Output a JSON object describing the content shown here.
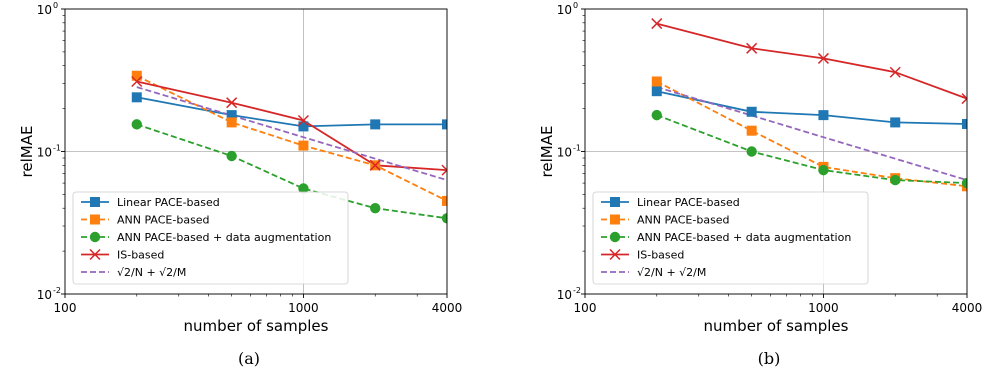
{
  "chart_data": [
    {
      "type": "line",
      "panel_label": "(a)",
      "xlabel": "number of samples",
      "ylabel": "relMAE",
      "x_scale": "log",
      "y_scale": "log",
      "xlim": [
        100,
        4000
      ],
      "ylim": [
        0.01,
        1
      ],
      "x_ticks": [
        100,
        1000,
        4000
      ],
      "x_tick_labels": [
        "100",
        "1000",
        "4000"
      ],
      "y_ticks": [
        0.01,
        0.1,
        1
      ],
      "y_tick_labels": [
        "10",
        "10",
        "10"
      ],
      "y_tick_exponents": [
        "-2",
        "-1",
        "0"
      ],
      "grid": true,
      "legend_position": "lower-left",
      "series": [
        {
          "name": "Linear PACE-based",
          "color": "#1f77b4",
          "linestyle": "solid",
          "marker": "square",
          "x": [
            200,
            500,
            1000,
            2000,
            4000
          ],
          "y": [
            0.24,
            0.18,
            0.15,
            0.155,
            0.155
          ]
        },
        {
          "name": "ANN PACE-based",
          "color": "#ff7f0e",
          "linestyle": "dashed",
          "marker": "square",
          "x": [
            200,
            500,
            1000,
            2000,
            4000
          ],
          "y": [
            0.34,
            0.16,
            0.11,
            0.08,
            0.045
          ]
        },
        {
          "name": "ANN PACE-based + data augmentation",
          "color": "#2ca02c",
          "linestyle": "dashed",
          "marker": "circle",
          "x": [
            200,
            500,
            1000,
            2000,
            4000
          ],
          "y": [
            0.155,
            0.093,
            0.055,
            0.04,
            0.034
          ]
        },
        {
          "name": "IS-based",
          "color": "#d62728",
          "linestyle": "solid",
          "marker": "x",
          "x": [
            200,
            500,
            1000,
            2000,
            4000
          ],
          "y": [
            0.31,
            0.22,
            0.165,
            0.08,
            0.074
          ]
        },
        {
          "name": "√2/N + √2/M",
          "color": "#9467bd",
          "linestyle": "dashed",
          "marker": "none",
          "x": [
            200,
            500,
            1000,
            2000,
            4000
          ],
          "y": [
            0.283,
            0.179,
            0.126,
            0.089,
            0.063
          ]
        }
      ]
    },
    {
      "type": "line",
      "panel_label": "(b)",
      "xlabel": "number of samples",
      "ylabel": "relMAE",
      "x_scale": "log",
      "y_scale": "log",
      "xlim": [
        100,
        4000
      ],
      "ylim": [
        0.01,
        1
      ],
      "x_ticks": [
        100,
        1000,
        4000
      ],
      "x_tick_labels": [
        "100",
        "1000",
        "4000"
      ],
      "y_ticks": [
        0.01,
        0.1,
        1
      ],
      "y_tick_labels": [
        "10",
        "10",
        "10"
      ],
      "y_tick_exponents": [
        "-2",
        "-1",
        "0"
      ],
      "grid": true,
      "legend_position": "lower-left",
      "series": [
        {
          "name": "Linear PACE-based",
          "color": "#1f77b4",
          "linestyle": "solid",
          "marker": "square",
          "x": [
            200,
            500,
            1000,
            2000,
            4000
          ],
          "y": [
            0.265,
            0.19,
            0.18,
            0.16,
            0.156
          ]
        },
        {
          "name": "ANN PACE-based",
          "color": "#ff7f0e",
          "linestyle": "dashed",
          "marker": "square",
          "x": [
            200,
            500,
            1000,
            2000,
            4000
          ],
          "y": [
            0.31,
            0.14,
            0.078,
            0.065,
            0.057
          ]
        },
        {
          "name": "ANN PACE-based + data augmentation",
          "color": "#2ca02c",
          "linestyle": "dashed",
          "marker": "circle",
          "x": [
            200,
            500,
            1000,
            2000,
            4000
          ],
          "y": [
            0.18,
            0.1,
            0.074,
            0.063,
            0.06
          ]
        },
        {
          "name": "IS-based",
          "color": "#d62728",
          "linestyle": "solid",
          "marker": "x",
          "x": [
            200,
            500,
            1000,
            2000,
            4000
          ],
          "y": [
            0.79,
            0.53,
            0.45,
            0.36,
            0.235
          ]
        },
        {
          "name": "√2/N + √2/M",
          "color": "#9467bd",
          "linestyle": "dashed",
          "marker": "none",
          "x": [
            200,
            500,
            1000,
            2000,
            4000
          ],
          "y": [
            0.283,
            0.179,
            0.126,
            0.089,
            0.063
          ]
        }
      ]
    }
  ]
}
